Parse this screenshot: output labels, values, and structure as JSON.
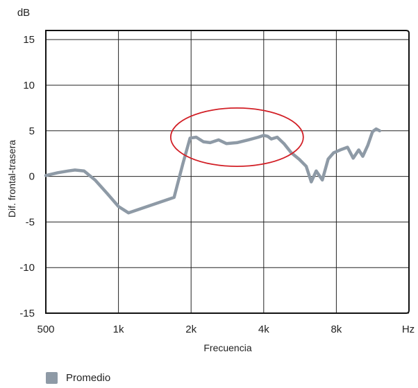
{
  "chart_data": {
    "type": "line",
    "y_unit": "dB",
    "x_unit": "Hz",
    "xlabel": "Frecuencia",
    "ylabel": "Dif. frontal-trasera",
    "x_scale": "log2",
    "xlim": [
      500,
      16000
    ],
    "ylim": [
      -15,
      16
    ],
    "x_ticks": [
      {
        "value": 500,
        "label": "500"
      },
      {
        "value": 1000,
        "label": "1k"
      },
      {
        "value": 2000,
        "label": "2k"
      },
      {
        "value": 4000,
        "label": "4k"
      },
      {
        "value": 8000,
        "label": "8k"
      }
    ],
    "y_ticks": [
      {
        "value": 15,
        "label": "15"
      },
      {
        "value": 10,
        "label": "10"
      },
      {
        "value": 5,
        "label": "5"
      },
      {
        "value": 0,
        "label": "0"
      },
      {
        "value": -5,
        "label": "-5"
      },
      {
        "value": -10,
        "label": "-10"
      },
      {
        "value": -15,
        "label": "-15"
      }
    ],
    "grid": true,
    "legend_position": "bottom-left",
    "series": [
      {
        "name": "Promedio",
        "color": "#8e9aa6",
        "x": [
          500,
          560,
          620,
          660,
          720,
          800,
          900,
          1000,
          1100,
          1700,
          1850,
          1980,
          2100,
          2250,
          2400,
          2600,
          2800,
          3100,
          3450,
          3800,
          4000,
          4150,
          4300,
          4550,
          4850,
          5200,
          5600,
          6000,
          6300,
          6600,
          7000,
          7400,
          7800,
          8300,
          8900,
          9400,
          9900,
          10300,
          10800,
          11300,
          11700,
          12100
        ],
        "y": [
          0.1,
          0.4,
          0.6,
          0.7,
          0.6,
          -0.4,
          -1.9,
          -3.3,
          -4.0,
          -2.3,
          1.4,
          4.2,
          4.3,
          3.8,
          3.7,
          4.0,
          3.6,
          3.7,
          4.0,
          4.3,
          4.5,
          4.4,
          4.1,
          4.3,
          3.6,
          2.6,
          1.9,
          1.1,
          -0.6,
          0.6,
          -0.4,
          1.9,
          2.6,
          2.9,
          3.2,
          2.0,
          2.9,
          2.2,
          3.4,
          4.9,
          5.2,
          5.0
        ]
      }
    ],
    "annotations": [
      {
        "type": "ellipse",
        "color": "#d21f26",
        "center_x": 3100,
        "center_y": 4.3,
        "x_start": 1650,
        "x_end": 5850,
        "half_height_db": 3.2
      }
    ]
  },
  "legend": {
    "items": [
      {
        "label": "Promedio",
        "color": "#8e9aa6"
      }
    ]
  }
}
